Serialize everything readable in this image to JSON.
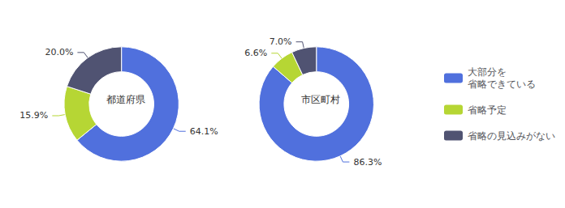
{
  "chart_data": [
    {
      "type": "pie",
      "title": "都道府県",
      "categories": [
        "大部分を\n省略できている",
        "省略予定",
        "省略の見込みがない"
      ],
      "values": [
        64.1,
        15.9,
        20.0
      ],
      "value_labels": [
        "64.1%",
        "15.9%",
        "20.0%"
      ],
      "data_labels": true,
      "legend": "right"
    },
    {
      "type": "pie",
      "title": "市区町村",
      "categories": [
        "大部分を\n省略できている",
        "省略予定",
        "省略の見込みがない"
      ],
      "values": [
        86.3,
        6.6,
        7.0
      ],
      "value_labels": [
        "86.3%",
        "6.6%",
        "7.0%"
      ],
      "data_labels": true,
      "legend": "right"
    }
  ]
}
